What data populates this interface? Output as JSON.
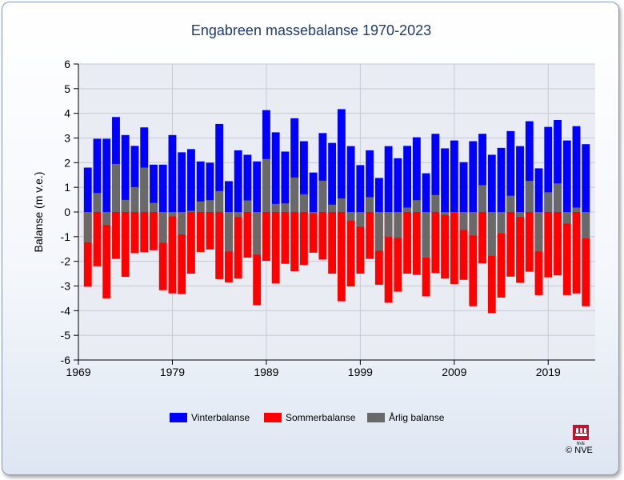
{
  "chart_data": {
    "type": "bar",
    "title": "Engabreen massebalanse 1970-2023",
    "xlabel": "",
    "ylabel": "Balanse (m v.e.)",
    "ylim": [
      -6,
      6
    ],
    "xlim": [
      1969,
      2024
    ],
    "y_ticks": [
      "6",
      "5",
      "4",
      "3",
      "2",
      "1",
      "0",
      "-1",
      "-2",
      "-3",
      "-4",
      "-5",
      "-6"
    ],
    "x_ticks": [
      "1969",
      "1979",
      "1989",
      "1999",
      "2009",
      "2019"
    ],
    "grid": true,
    "legend_position": "bottom",
    "categories": [
      1970,
      1971,
      1972,
      1973,
      1974,
      1975,
      1976,
      1977,
      1978,
      1979,
      1980,
      1981,
      1982,
      1983,
      1984,
      1985,
      1986,
      1987,
      1988,
      1989,
      1990,
      1991,
      1992,
      1993,
      1994,
      1995,
      1996,
      1997,
      1998,
      1999,
      2000,
      2001,
      2002,
      2003,
      2004,
      2005,
      2006,
      2007,
      2008,
      2009,
      2010,
      2011,
      2012,
      2013,
      2014,
      2015,
      2016,
      2017,
      2018,
      2019,
      2020,
      2021,
      2022,
      2023
    ],
    "series": [
      {
        "name": "Vinterbalanse",
        "color": "#0000ff",
        "values": [
          1.8,
          2.97,
          2.97,
          3.85,
          3.12,
          2.68,
          3.43,
          1.92,
          1.92,
          3.12,
          2.42,
          2.55,
          2.05,
          2.0,
          3.57,
          1.25,
          2.5,
          2.32,
          2.05,
          4.13,
          3.23,
          2.45,
          3.8,
          2.87,
          1.6,
          3.2,
          2.8,
          4.17,
          2.67,
          1.9,
          2.5,
          1.38,
          2.67,
          2.18,
          2.68,
          3.03,
          1.57,
          3.17,
          2.58,
          2.9,
          2.02,
          2.87,
          3.17,
          2.32,
          2.6,
          3.28,
          2.67,
          3.68,
          1.77,
          3.45,
          3.73,
          2.9,
          3.48,
          2.75
        ]
      },
      {
        "name": "Sommerbalanse",
        "color": "#ff0000",
        "values": [
          -3.03,
          -2.2,
          -3.5,
          -1.9,
          -2.63,
          -1.67,
          -1.63,
          -1.55,
          -3.17,
          -3.3,
          -3.33,
          -2.5,
          -1.62,
          -1.52,
          -2.72,
          -2.85,
          -2.7,
          -1.85,
          -3.78,
          -1.98,
          -2.9,
          -2.1,
          -2.4,
          -2.15,
          -1.65,
          -1.93,
          -2.5,
          -3.62,
          -3.02,
          -2.5,
          -1.9,
          -2.95,
          -3.68,
          -3.23,
          -2.5,
          -2.55,
          -3.42,
          -2.48,
          -2.7,
          -2.92,
          -2.75,
          -3.82,
          -2.08,
          -4.1,
          -3.47,
          -2.62,
          -2.87,
          -2.42,
          -3.37,
          -2.65,
          -2.57,
          -3.37,
          -3.3,
          -3.82
        ]
      },
      {
        "name": "Årlig balanse",
        "color": "#696969",
        "values": [
          -1.23,
          0.77,
          -0.53,
          1.95,
          0.49,
          1.01,
          1.8,
          0.37,
          -1.25,
          -0.18,
          -0.91,
          0.05,
          0.43,
          0.48,
          0.85,
          -1.6,
          -0.2,
          0.47,
          -1.73,
          2.15,
          0.33,
          0.35,
          1.4,
          0.72,
          -0.05,
          1.27,
          0.3,
          0.55,
          -0.35,
          -0.6,
          0.6,
          -1.57,
          -1.01,
          -1.05,
          0.18,
          0.48,
          -1.85,
          0.69,
          -0.12,
          -0.02,
          -0.73,
          -0.95,
          1.09,
          -1.78,
          -0.87,
          0.66,
          -0.2,
          1.26,
          -1.6,
          0.8,
          1.16,
          -0.47,
          0.18,
          -1.07
        ]
      }
    ]
  },
  "legend": {
    "items": [
      {
        "label": "Vinterbalanse",
        "color": "#0000ff"
      },
      {
        "label": "Sommerbalanse",
        "color": "#ff0000"
      },
      {
        "label": "Årlig balanse",
        "color": "#696969"
      }
    ]
  },
  "logo": {
    "text": "NVE",
    "credit": "© NVE",
    "color": "#c8102e"
  }
}
